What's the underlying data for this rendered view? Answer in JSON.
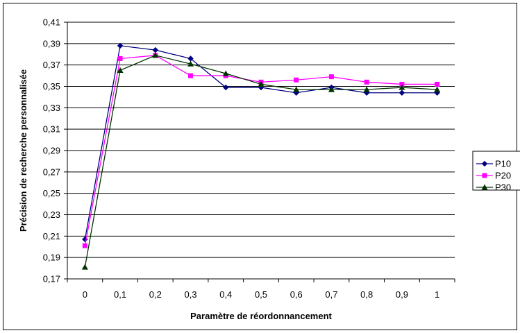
{
  "chart_data": {
    "type": "line",
    "title": "",
    "xlabel": "Paramètre de réordonnancement",
    "ylabel": "Précision de recherche personnalisée",
    "categories": [
      "0",
      "0,1",
      "0,2",
      "0,3",
      "0,4",
      "0,5",
      "0,6",
      "0,7",
      "0,8",
      "0,9",
      "1"
    ],
    "ylim": [
      0.17,
      0.41
    ],
    "yticks": [
      "0,17",
      "0,19",
      "0,21",
      "0,23",
      "0,25",
      "0,27",
      "0,29",
      "0,31",
      "0,33",
      "0,35",
      "0,37",
      "0,39",
      "0,41"
    ],
    "ytick_values": [
      0.17,
      0.19,
      0.21,
      0.23,
      0.25,
      0.27,
      0.29,
      0.31,
      0.33,
      0.35,
      0.37,
      0.39,
      0.41
    ],
    "grid": "horizontal",
    "legend_position": "right",
    "series": [
      {
        "name": "P10",
        "color": "#000080",
        "marker": "diamond",
        "values": [
          0.207,
          0.388,
          0.384,
          0.376,
          0.349,
          0.349,
          0.344,
          0.349,
          0.344,
          0.344,
          0.344
        ]
      },
      {
        "name": "P20",
        "color": "#FF00FF",
        "marker": "square",
        "values": [
          0.201,
          0.376,
          0.379,
          0.36,
          0.36,
          0.354,
          0.356,
          0.359,
          0.354,
          0.352,
          0.352
        ]
      },
      {
        "name": "P30",
        "color": "#003300",
        "marker": "triangle",
        "values": [
          0.181,
          0.365,
          0.379,
          0.371,
          0.362,
          0.352,
          0.347,
          0.347,
          0.347,
          0.349,
          0.347
        ]
      }
    ]
  }
}
